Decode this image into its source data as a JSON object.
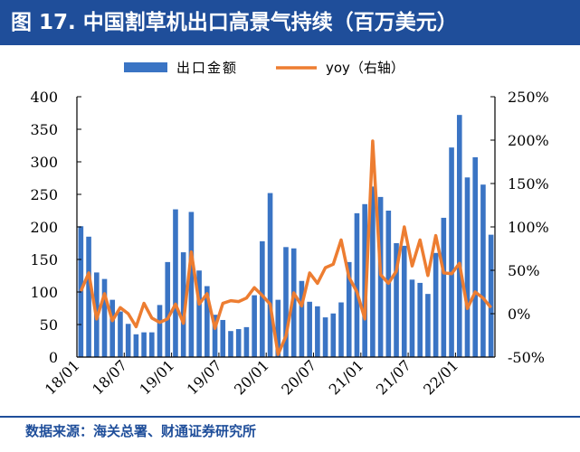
{
  "title": "图 17. 中国割草机出口高景气持续（百万美元）",
  "source": "数据来源：海关总署、财通证券研究所",
  "colors": {
    "bar": "#3a74c4",
    "line": "#ed7d31",
    "brand": "#1f4e9a"
  },
  "chart_data": {
    "type": "bar+line",
    "title": "中国割草机出口高景气持续（百万美元）",
    "legend": [
      "出口金额",
      "yoy（右轴）"
    ],
    "legend_placement": "top",
    "x_tick_labels": [
      "18/01",
      "18/07",
      "19/01",
      "19/07",
      "20/01",
      "20/07",
      "21/01",
      "21/07",
      "22/01"
    ],
    "months": [
      "18/01",
      "18/02",
      "18/03",
      "18/04",
      "18/05",
      "18/06",
      "18/07",
      "18/08",
      "18/09",
      "18/10",
      "18/11",
      "18/12",
      "19/01",
      "19/02",
      "19/03",
      "19/04",
      "19/05",
      "19/06",
      "19/07",
      "19/08",
      "19/09",
      "19/10",
      "19/11",
      "19/12",
      "20/01",
      "20/02",
      "20/03",
      "20/04",
      "20/05",
      "20/06",
      "20/07",
      "20/08",
      "20/09",
      "20/10",
      "20/11",
      "20/12",
      "21/01",
      "21/02",
      "21/03",
      "21/04",
      "21/05",
      "21/06",
      "21/07",
      "21/08",
      "21/09",
      "21/10",
      "21/11",
      "21/12",
      "22/01",
      "22/02",
      "22/03",
      "22/04",
      "22/05"
    ],
    "series": [
      {
        "name": "出口金额",
        "axis": "left",
        "type": "bar",
        "values": [
          201,
          185,
          130,
          120,
          88,
          70,
          51,
          35,
          38,
          38,
          80,
          146,
          227,
          161,
          223,
          133,
          109,
          65,
          57,
          40,
          43,
          46,
          95,
          178,
          252,
          88,
          169,
          167,
          117,
          85,
          78,
          61,
          67,
          84,
          146,
          221,
          235,
          262,
          246,
          225,
          175,
          171,
          119,
          114,
          97,
          160,
          214,
          322,
          372,
          276,
          307,
          265,
          188
        ]
      },
      {
        "name": "yoy（右轴）",
        "axis": "right",
        "type": "line",
        "values": [
          26,
          47,
          -6,
          23,
          -8,
          7,
          0,
          -15,
          12,
          -5,
          -10,
          -6,
          11,
          -11,
          71,
          11,
          23,
          -17,
          12,
          15,
          14,
          18,
          30,
          21,
          11,
          -47,
          -26,
          24,
          9,
          47,
          35,
          53,
          57,
          85,
          42,
          25,
          -6,
          199,
          45,
          35,
          49,
          100,
          55,
          85,
          44,
          90,
          47,
          46,
          58,
          6,
          25,
          18,
          7
        ]
      }
    ],
    "y_left": {
      "ylim": [
        0,
        400
      ],
      "ticks": [
        "0",
        "50",
        "100",
        "150",
        "200",
        "250",
        "300",
        "350",
        "400"
      ]
    },
    "y_right": {
      "ylim": [
        -50,
        250
      ],
      "ticks": [
        "-50%",
        "0%",
        "50%",
        "100%",
        "150%",
        "200%",
        "250%"
      ]
    }
  }
}
